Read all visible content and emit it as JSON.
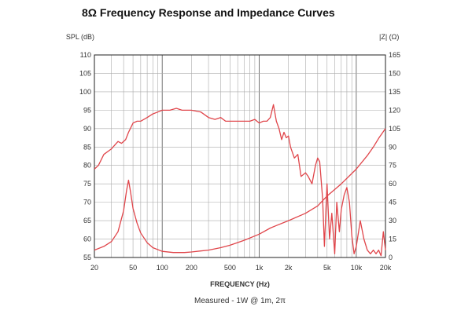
{
  "title": "8Ω Frequency Response and Impedance Curves",
  "chart_data": {
    "type": "line",
    "x_scale": "log",
    "xlim": [
      20,
      20000
    ],
    "xlabel": "FREQUENCY (Hz)",
    "x_ticks": [
      20,
      50,
      100,
      200,
      500,
      1000,
      2000,
      5000,
      10000,
      20000
    ],
    "x_tick_labels": [
      "20",
      "50",
      "100",
      "200",
      "500",
      "1k",
      "2k",
      "5k",
      "10k",
      "20k"
    ],
    "ylabel_left": "SPL (dB)",
    "ylim_left": [
      55,
      110
    ],
    "y_ticks_left": [
      55,
      60,
      65,
      70,
      75,
      80,
      85,
      90,
      95,
      100,
      105,
      110
    ],
    "ylabel_right": "|Z| (Ω)",
    "ylim_right": [
      0,
      165
    ],
    "y_ticks_right": [
      0,
      15,
      30,
      45,
      60,
      75,
      90,
      105,
      120,
      135,
      150,
      165
    ],
    "annotation": "Measured - 1W @ 1m, 2π",
    "grid": true,
    "line_color": "#e0454a",
    "series": [
      {
        "axis": "left",
        "x": [
          20,
          22,
          25,
          30,
          35,
          38,
          42,
          45,
          50,
          55,
          60,
          70,
          80,
          90,
          100,
          110,
          120,
          140,
          160,
          200,
          250,
          300,
          350,
          400,
          450,
          500,
          600,
          700,
          800,
          900,
          1000,
          1100,
          1200,
          1300,
          1400,
          1500,
          1600,
          1700,
          1800,
          1900,
          2000,
          2100,
          2300,
          2500,
          2700,
          3000,
          3200,
          3500,
          3800,
          4000,
          4200,
          4500,
          4700,
          5000,
          5300,
          5600,
          6000,
          6300,
          6700,
          7000,
          7500,
          8000,
          8500,
          9000,
          9500,
          10000,
          11000,
          12000,
          13000,
          14000,
          15000,
          16000,
          17000,
          18000,
          19000,
          20000
        ],
        "values": [
          79,
          80,
          83,
          84.5,
          86.5,
          86,
          87,
          89,
          91.5,
          92,
          92,
          93,
          94,
          94.5,
          95,
          95,
          95,
          95.5,
          95,
          95,
          94.5,
          93,
          92.5,
          93,
          92,
          92,
          92,
          92,
          92,
          92.5,
          91.5,
          92,
          92,
          93,
          96.5,
          92,
          90,
          87,
          89,
          87.5,
          88,
          85,
          82,
          83,
          77,
          78,
          77,
          75,
          80,
          82,
          81,
          71,
          58,
          75,
          60,
          67,
          56,
          70,
          62,
          68,
          72,
          74,
          70,
          61,
          56,
          58,
          65,
          60,
          57,
          56,
          57,
          56,
          57,
          55.5,
          62,
          57
        ]
      },
      {
        "axis": "right",
        "x": [
          20,
          25,
          30,
          35,
          40,
          43,
          45,
          47,
          50,
          55,
          60,
          70,
          80,
          100,
          130,
          170,
          200,
          300,
          400,
          500,
          700,
          1000,
          1300,
          1500,
          2000,
          3000,
          4000,
          5000,
          7000,
          10000,
          13000,
          15000,
          17000,
          20000
        ],
        "values": [
          6,
          9,
          13,
          21,
          38,
          55,
          63,
          54,
          40,
          28,
          20,
          12,
          8,
          5,
          4,
          4,
          4.5,
          6,
          8,
          10,
          14,
          19,
          24,
          26,
          30,
          36,
          42,
          50,
          60,
          72,
          83,
          90,
          97,
          105
        ]
      }
    ]
  }
}
